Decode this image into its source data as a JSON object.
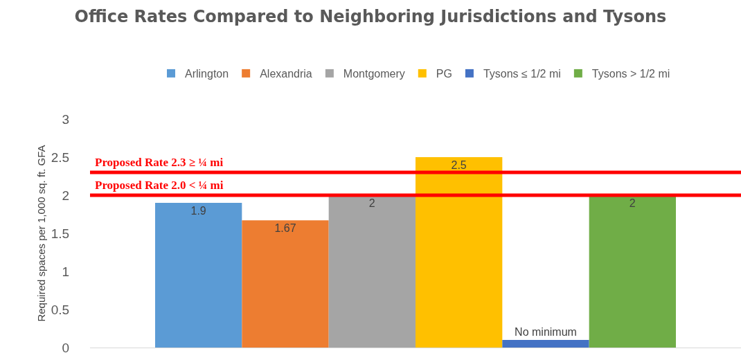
{
  "chart_data": {
    "type": "bar",
    "title": "Office Rates Compared to Neighboring Jurisdictions and Tysons",
    "ylabel": "Required spaces per 1,000 sq. ft. GFA",
    "categories": [
      null
    ],
    "series": [
      {
        "name": "Arlington",
        "color": "#5b9bd5",
        "values": [
          1.9
        ],
        "value_labels": [
          "1.9"
        ]
      },
      {
        "name": "Alexandria",
        "color": "#ed7d31",
        "values": [
          1.67
        ],
        "value_labels": [
          "1.67"
        ]
      },
      {
        "name": "Montgomery",
        "color": "#a5a5a5",
        "values": [
          2
        ],
        "value_labels": [
          "2"
        ]
      },
      {
        "name": "PG",
        "color": "#ffc000",
        "values": [
          2.5
        ],
        "value_labels": [
          "2.5"
        ]
      },
      {
        "name": "Tysons ≤ 1/2 mi",
        "color": "#4472c4",
        "values": [
          0.1
        ],
        "value_labels": [
          "No minimum"
        ]
      },
      {
        "name": "Tysons > 1/2 mi",
        "color": "#70ad47",
        "values": [
          2
        ],
        "value_labels": [
          "2"
        ]
      }
    ],
    "ylim": [
      0,
      3
    ],
    "yticks": [
      0,
      0.5,
      1,
      1.5,
      2,
      2.5,
      3
    ],
    "legend": "top",
    "ref_lines": [
      {
        "axis": "y",
        "value": 2.3,
        "label": "Proposed Rate 2.3 ≥ ¼ mi",
        "color": "#ff0000"
      },
      {
        "axis": "y",
        "value": 2.0,
        "label": "Proposed Rate 2.0 < ¼ mi",
        "color": "#ff0000"
      }
    ]
  }
}
